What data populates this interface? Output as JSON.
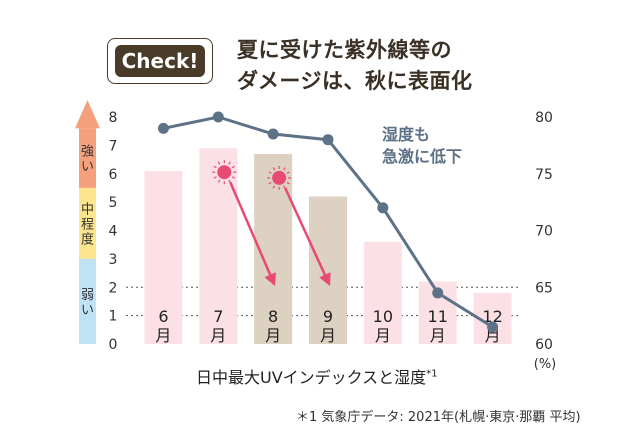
{
  "callout": {
    "badge": "Check!",
    "headline_line1": "夏に受けた紫外線等の",
    "headline_line2": "ダメージは、秋に表面化"
  },
  "chart_data": {
    "type": "bar",
    "title": "日中最大UVインデックスと湿度",
    "title_note": "*1",
    "categories": [
      "6月",
      "7月",
      "8月",
      "9月",
      "10月",
      "11月",
      "12月"
    ],
    "category_labels": [
      [
        "6",
        "月"
      ],
      [
        "7",
        "月"
      ],
      [
        "8",
        "月"
      ],
      [
        "9",
        "月"
      ],
      [
        "10",
        "月"
      ],
      [
        "11",
        "月"
      ],
      [
        "12",
        "月"
      ]
    ],
    "series": [
      {
        "values": [
          6.1,
          6.9,
          6.7,
          5.2,
          3.6,
          2.2,
          1.8
        ],
        "axis": "left"
      },
      {
        "name": "湿度も急激に低下",
        "type": "line",
        "axis": "right",
        "unit": "%",
        "values": [
          79,
          80,
          78.5,
          78,
          72,
          64.5,
          61.5
        ]
      }
    ],
    "highlighted_categories": [
      "8月",
      "9月"
    ],
    "left_axis": {
      "ylim": [
        0,
        8
      ],
      "ticks": [
        "0",
        "1",
        "2",
        "3",
        "4",
        "5",
        "6",
        "7",
        "8"
      ]
    },
    "right_axis": {
      "ylim": [
        60,
        80
      ],
      "ticks": [
        "60",
        "65",
        "70",
        "75",
        "80"
      ],
      "unit_label": "(%)"
    },
    "uv_levels": [
      {
        "label": "強い",
        "color": "#f4a07c"
      },
      {
        "label": "中程度",
        "color": "#fbe58e"
      },
      {
        "label": "弱い",
        "color": "#bfe3f5"
      }
    ],
    "line_annotation": "湿度も\n急激に低下",
    "bar_colors": {
      "normal": "#fbe1e6",
      "highlight": "#ddd1c2"
    },
    "line_color": "#5d7286",
    "arrow_color": "#e84a74",
    "grid": false
  },
  "footnote": "＊1 気象庁データ: 2021年(札幌·東京·那覇 平均)"
}
